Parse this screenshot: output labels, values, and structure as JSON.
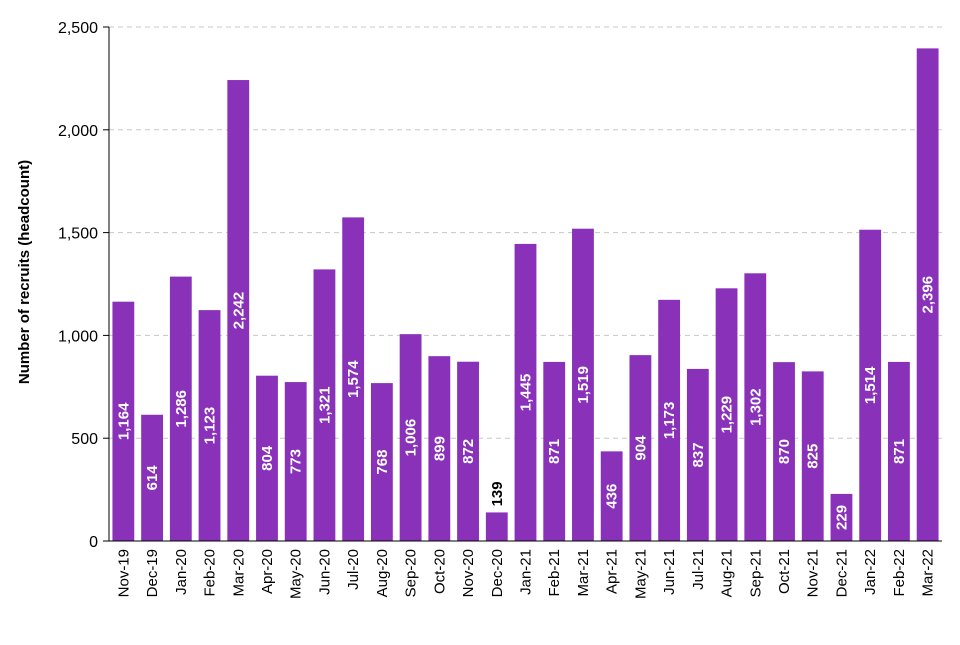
{
  "chart_data": {
    "type": "bar",
    "title": "",
    "xlabel": "",
    "ylabel": "Number of recruits (headcount)",
    "ylim": [
      0,
      2500
    ],
    "yticks": [
      0,
      500,
      1000,
      1500,
      2000,
      2500
    ],
    "ytick_labels": [
      "0",
      "500",
      "1,000",
      "1,500",
      "2,000",
      "2,500"
    ],
    "grid": true,
    "legend": "none",
    "bar_color": "#8931b9",
    "label_color_inside": "#ffffff",
    "label_color_outside": "#000000",
    "grid_color": "#c8c8c8",
    "categories": [
      "Nov-19",
      "Dec-19",
      "Jan-20",
      "Feb-20",
      "Mar-20",
      "Apr-20",
      "May-20",
      "Jun-20",
      "Jul-20",
      "Aug-20",
      "Sep-20",
      "Oct-20",
      "Nov-20",
      "Dec-20",
      "Jan-21",
      "Feb-21",
      "Mar-21",
      "Apr-21",
      "May-21",
      "Jun-21",
      "Jul-21",
      "Aug-21",
      "Sep-21",
      "Oct-21",
      "Nov-21",
      "Dec-21",
      "Jan-22",
      "Feb-22",
      "Mar-22"
    ],
    "values": [
      1164,
      614,
      1286,
      1123,
      2242,
      804,
      773,
      1321,
      1574,
      768,
      1006,
      899,
      872,
      139,
      1445,
      871,
      1519,
      436,
      904,
      1173,
      837,
      1229,
      1302,
      870,
      825,
      229,
      1514,
      871,
      2396
    ],
    "value_labels": [
      "1,164",
      "614",
      "1,286",
      "1,123",
      "2,242",
      "804",
      "773",
      "1,321",
      "1,574",
      "768",
      "1,006",
      "899",
      "872",
      "139",
      "1,445",
      "871",
      "1,519",
      "436",
      "904",
      "1,173",
      "837",
      "1,229",
      "1,302",
      "870",
      "825",
      "229",
      "1,514",
      "871",
      "2,396"
    ]
  }
}
